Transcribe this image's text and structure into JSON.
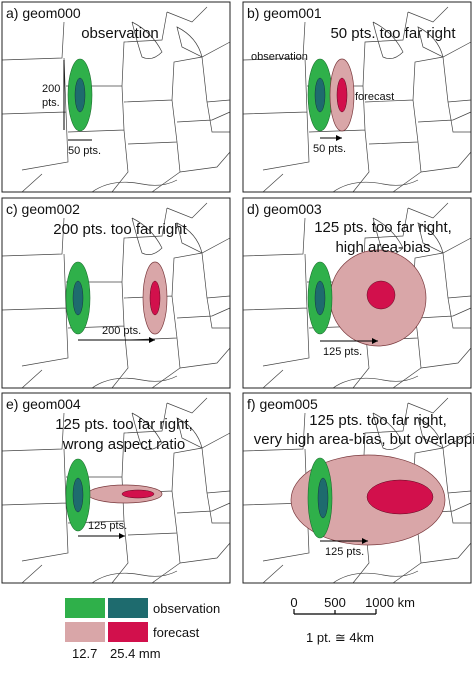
{
  "panels": [
    {
      "label": "a) geom000",
      "title": [
        "observation"
      ],
      "annotations": [
        "200",
        "pts.",
        "50 pts."
      ]
    },
    {
      "label": "b) geom001",
      "title": [
        "50 pts. too far right"
      ],
      "annotations": [
        "observation",
        "forecast",
        "50 pts."
      ]
    },
    {
      "label": "c) geom002",
      "title": [
        "200 pts. too far right"
      ],
      "annotations": [
        "200 pts."
      ]
    },
    {
      "label": "d) geom003",
      "title": [
        "125 pts. too far right,",
        "high area-bias"
      ],
      "annotations": [
        "125 pts."
      ]
    },
    {
      "label": "e) geom004",
      "title": [
        "125 pts. too far right,",
        "wrong aspect ratio"
      ],
      "annotations": [
        "125 pts."
      ]
    },
    {
      "label": "f) geom005",
      "title": [
        "125 pts. too far right,",
        "very high area-bias, but overlapping"
      ],
      "annotations": [
        "125 pts."
      ]
    }
  ],
  "legend": {
    "observation": "observation",
    "forecast": "forecast",
    "low": "12.7",
    "high": "25.4 mm"
  },
  "scale": {
    "ticks": [
      "0",
      "500",
      "1000 km"
    ],
    "note": "1 pt. ≅ 4km"
  }
}
